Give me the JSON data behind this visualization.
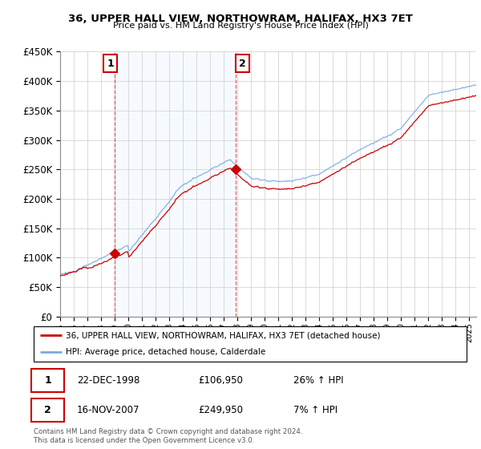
{
  "title": "36, UPPER HALL VIEW, NORTHOWRAM, HALIFAX, HX3 7ET",
  "subtitle": "Price paid vs. HM Land Registry's House Price Index (HPI)",
  "legend_line1": "36, UPPER HALL VIEW, NORTHOWRAM, HALIFAX, HX3 7ET (detached house)",
  "legend_line2": "HPI: Average price, detached house, Calderdale",
  "annotation1_label": "1",
  "annotation1_date": "22-DEC-1998",
  "annotation1_price": "£106,950",
  "annotation1_hpi": "26% ↑ HPI",
  "annotation2_label": "2",
  "annotation2_date": "16-NOV-2007",
  "annotation2_price": "£249,950",
  "annotation2_hpi": "7% ↑ HPI",
  "footer": "Contains HM Land Registry data © Crown copyright and database right 2024.\nThis data is licensed under the Open Government Licence v3.0.",
  "red_color": "#cc0000",
  "blue_color": "#7aaadd",
  "shade_color": "#ddeeff",
  "dashed_color": "#dd4444",
  "ylim": [
    0,
    450000
  ],
  "yticks": [
    0,
    50000,
    100000,
    150000,
    200000,
    250000,
    300000,
    350000,
    400000,
    450000
  ],
  "sale1_year": 1998.97,
  "sale1_price": 106950,
  "sale2_year": 2007.88,
  "sale2_price": 249950,
  "xmin": 1995,
  "xmax": 2025.5
}
